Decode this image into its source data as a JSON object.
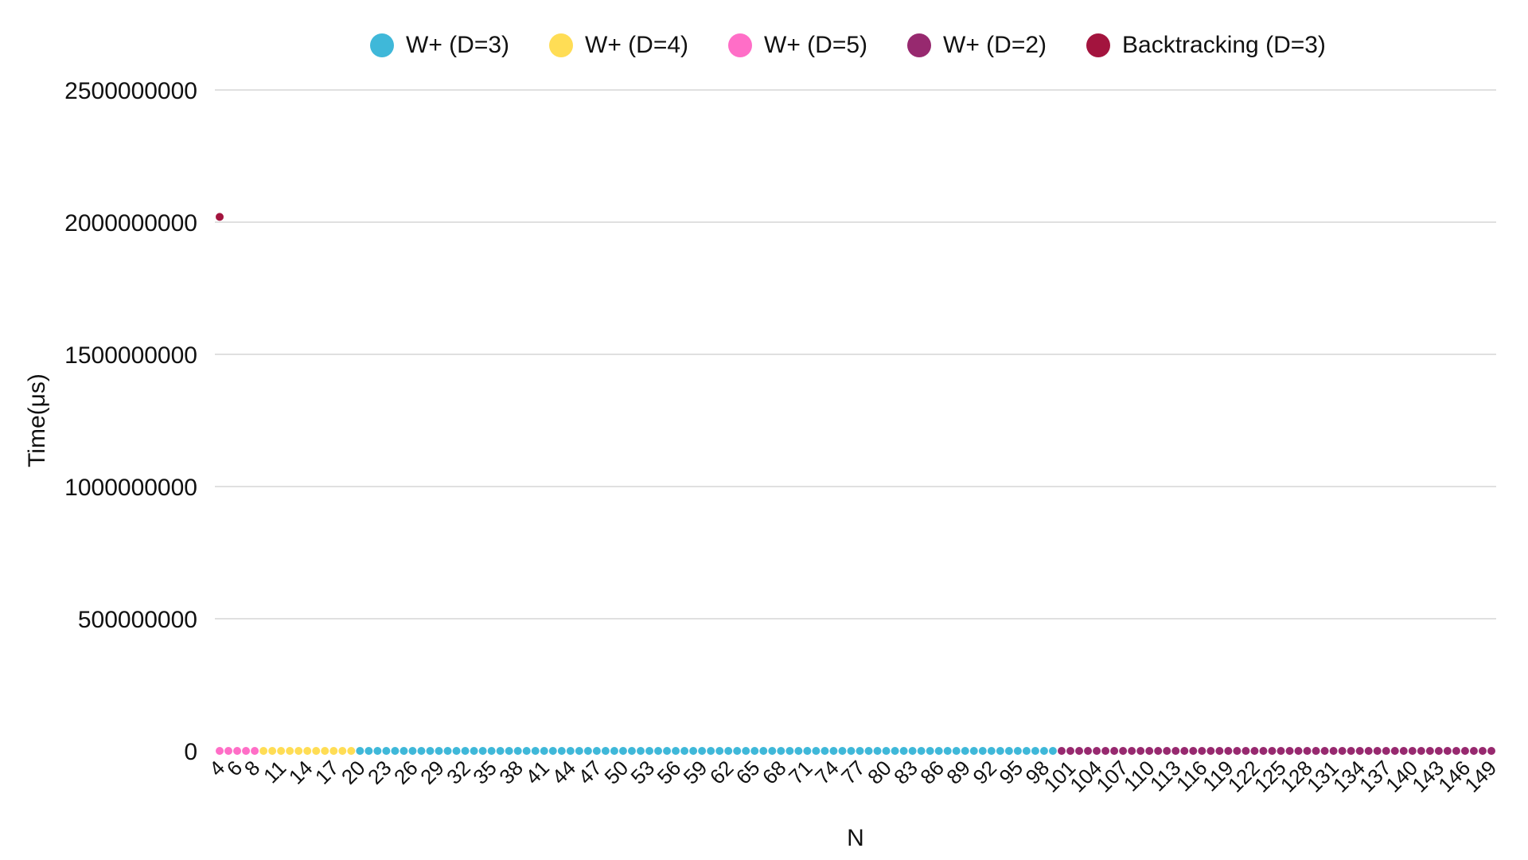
{
  "chart_data": {
    "type": "scatter",
    "xlabel": "N",
    "ylabel": "Time(μs)",
    "ylim": [
      0,
      2500000000
    ],
    "yticks": [
      0,
      500000000,
      1000000000,
      1500000000,
      2000000000,
      2500000000
    ],
    "x_categories_start": 4,
    "x_categories_end": 149,
    "x_tick_labels": [
      "4",
      "6",
      "8",
      "11",
      "14",
      "17",
      "20",
      "23",
      "26",
      "29",
      "32",
      "35",
      "38",
      "41",
      "44",
      "47",
      "50",
      "53",
      "56",
      "59",
      "62",
      "65",
      "68",
      "71",
      "74",
      "77",
      "80",
      "83",
      "86",
      "89",
      "92",
      "95",
      "98",
      "101",
      "104",
      "107",
      "110",
      "113",
      "116",
      "119",
      "122",
      "125",
      "128",
      "131",
      "134",
      "137",
      "140",
      "143",
      "146",
      "149"
    ],
    "grid": "horizontal",
    "legend_position": "top",
    "series": [
      {
        "name": "W+ (D=3)",
        "color": "#3fb8d9",
        "x_range": [
          20,
          99
        ],
        "y_value": 0
      },
      {
        "name": "W+ (D=4)",
        "color": "#ffdd55",
        "x_range": [
          9,
          19
        ],
        "y_value": 0
      },
      {
        "name": "W+ (D=5)",
        "color": "#ff6ec7",
        "x_range": [
          4,
          8
        ],
        "y_value": 0
      },
      {
        "name": "W+ (D=2)",
        "color": "#97296f",
        "x_range": [
          100,
          149
        ],
        "y_value": 0
      },
      {
        "name": "Backtracking (D=3)",
        "color": "#a3143e",
        "points": [
          {
            "x": 4,
            "y": 2020000000
          }
        ]
      }
    ]
  }
}
